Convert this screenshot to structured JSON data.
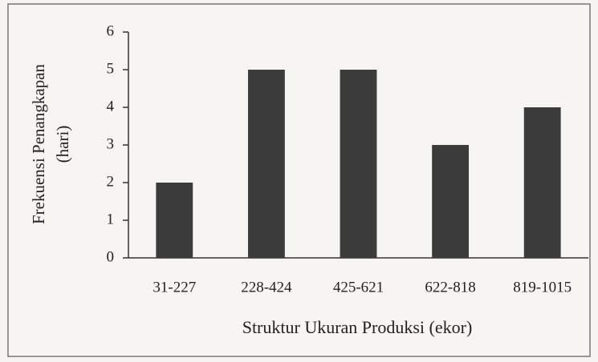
{
  "chart_data": {
    "type": "bar",
    "ylabel": [
      "Frekuensi Penangkapan",
      "(hari)"
    ],
    "xlabel": "Struktur Ukuran Produksi (ekor)",
    "categories": [
      "31-227",
      "228-424",
      "425-621",
      "622-818",
      "819-1015"
    ],
    "values": [
      2,
      5,
      5,
      3,
      4
    ],
    "color": "#3b3b3b",
    "ylim": [
      0,
      6
    ],
    "yticks": [
      0,
      1,
      2,
      3,
      4,
      5,
      6
    ],
    "grid": false
  }
}
